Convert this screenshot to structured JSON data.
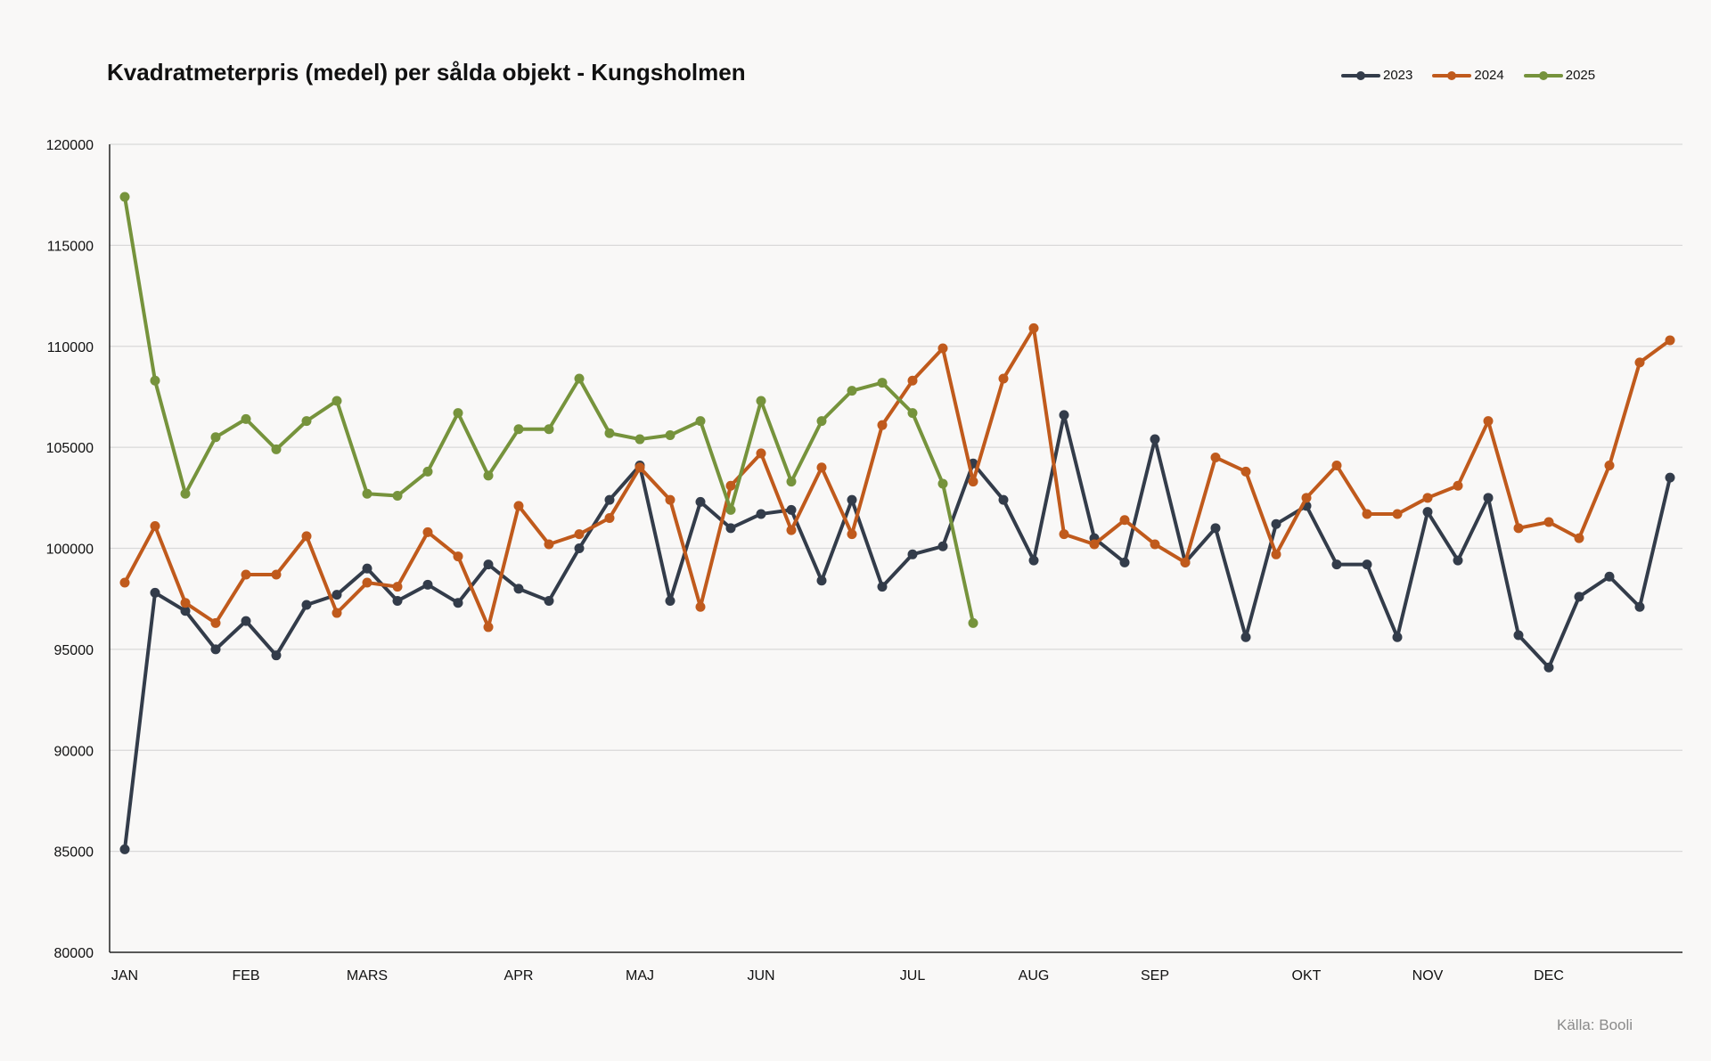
{
  "title": "Kvadratmeterpris (medel) per sålda objekt - Kungsholmen",
  "source": "Källa: Booli",
  "chart_data": {
    "type": "line",
    "title": "Kvadratmeterpris (medel) per sålda objekt - Kungsholmen",
    "xlabel": "",
    "ylabel": "",
    "ylim": [
      80000,
      120000
    ],
    "yticks": [
      80000,
      85000,
      90000,
      95000,
      100000,
      105000,
      110000,
      115000,
      120000
    ],
    "x_points": 52,
    "x_unit": "week",
    "month_labels": [
      {
        "label": "JAN",
        "index": 0
      },
      {
        "label": "FEB",
        "index": 4
      },
      {
        "label": "MARS",
        "index": 8
      },
      {
        "label": "APR",
        "index": 13
      },
      {
        "label": "MAJ",
        "index": 17
      },
      {
        "label": "JUN",
        "index": 21
      },
      {
        "label": "JUL",
        "index": 26
      },
      {
        "label": "AUG",
        "index": 30
      },
      {
        "label": "SEP",
        "index": 34
      },
      {
        "label": "OKT",
        "index": 39
      },
      {
        "label": "NOV",
        "index": 43
      },
      {
        "label": "DEC",
        "index": 47
      }
    ],
    "grid": true,
    "legend": "top-right",
    "series": [
      {
        "name": "2023",
        "color": "#333c4a",
        "values": [
          85100,
          97800,
          96900,
          95000,
          96400,
          94700,
          97200,
          97700,
          99000,
          97400,
          98200,
          97300,
          99200,
          98000,
          97400,
          100000,
          102400,
          104100,
          97400,
          102300,
          101000,
          101700,
          101900,
          98400,
          102400,
          98100,
          99700,
          100100,
          104200,
          102400,
          99400,
          106600,
          100500,
          99300,
          105400,
          99300,
          101000,
          95600,
          101200,
          102100,
          99200,
          99200,
          95600,
          101800,
          99400,
          102500,
          95700,
          94100,
          97600,
          98600,
          97100,
          103500
        ]
      },
      {
        "name": "2024",
        "color": "#c05a1c",
        "values": [
          98300,
          101100,
          97300,
          96300,
          98700,
          98700,
          100600,
          96800,
          98300,
          98100,
          100800,
          99600,
          96100,
          102100,
          100200,
          100700,
          101500,
          104000,
          102400,
          97100,
          103100,
          104700,
          100900,
          104000,
          100700,
          106100,
          108300,
          109900,
          103300,
          108400,
          110900,
          100700,
          100200,
          101400,
          100200,
          99300,
          104500,
          103800,
          99700,
          102500,
          104100,
          101700,
          101700,
          102500,
          103100,
          106300,
          101000,
          101300,
          100500,
          104100,
          109200,
          110300
        ]
      },
      {
        "name": "2025",
        "color": "#76933c",
        "values": [
          117400,
          108300,
          102700,
          105500,
          106400,
          104900,
          106300,
          107300,
          102700,
          102600,
          103800,
          106700,
          103600,
          105900,
          105900,
          108400,
          105700,
          105400,
          105600,
          106300,
          101900,
          107300,
          103300,
          106300,
          107800,
          108200,
          106700,
          103200,
          96300
        ]
      }
    ]
  }
}
